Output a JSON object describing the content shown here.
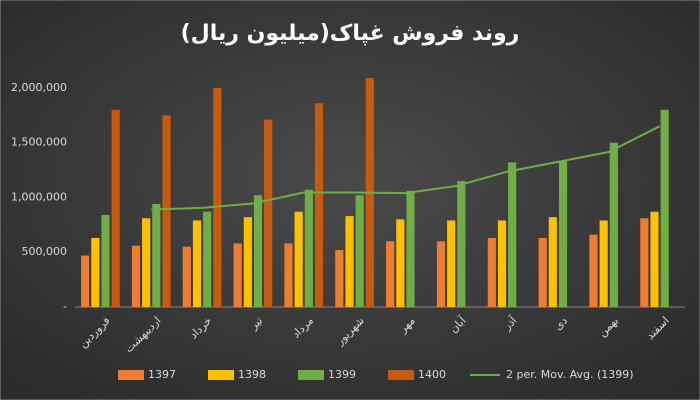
{
  "chart_data": {
    "type": "bar",
    "title": "روند فروش غپاک(میلیون ریال)",
    "categories": [
      "فروردین",
      "اردیبهشت",
      "خرداد",
      "تیر",
      "مرداد",
      "شهریور",
      "مهر",
      "آبان",
      "آذر",
      "دی",
      "بهمن",
      "اسفند"
    ],
    "series": [
      {
        "name": "1397",
        "color": "#ed7d31",
        "values": [
          470000,
          560000,
          550000,
          580000,
          580000,
          520000,
          600000,
          600000,
          630000,
          630000,
          660000,
          810000
        ]
      },
      {
        "name": "1398",
        "color": "#ffc000",
        "values": [
          630000,
          810000,
          790000,
          820000,
          870000,
          830000,
          800000,
          790000,
          790000,
          820000,
          790000,
          870000
        ]
      },
      {
        "name": "1399",
        "color": "#70ad47",
        "values": [
          840000,
          940000,
          870000,
          1020000,
          1070000,
          1020000,
          1060000,
          1150000,
          1320000,
          1330000,
          1500000,
          1800000
        ]
      },
      {
        "name": "1400",
        "color": "#c55a11",
        "values": [
          1800000,
          1750000,
          2000000,
          1710000,
          1860000,
          2090000,
          null,
          null,
          null,
          null,
          null,
          null
        ]
      },
      {
        "name": "2 per. Mov. Avg. (1399)",
        "type": "line",
        "color": "#70ad47",
        "values": [
          null,
          890000,
          905000,
          945000,
          1045000,
          1045000,
          1040000,
          1105000,
          1235000,
          1325000,
          1415000,
          1650000
        ]
      }
    ],
    "ylim": [
      0,
      2200000
    ],
    "yticks": [
      {
        "value": 0,
        "label": "-"
      },
      {
        "value": 500000,
        "label": "500,000"
      },
      {
        "value": 1000000,
        "label": "1,000,000"
      },
      {
        "value": 1500000,
        "label": "1,500,000"
      },
      {
        "value": 2000000,
        "label": "2,000,000"
      }
    ],
    "grid": false,
    "legend": "bottom"
  }
}
